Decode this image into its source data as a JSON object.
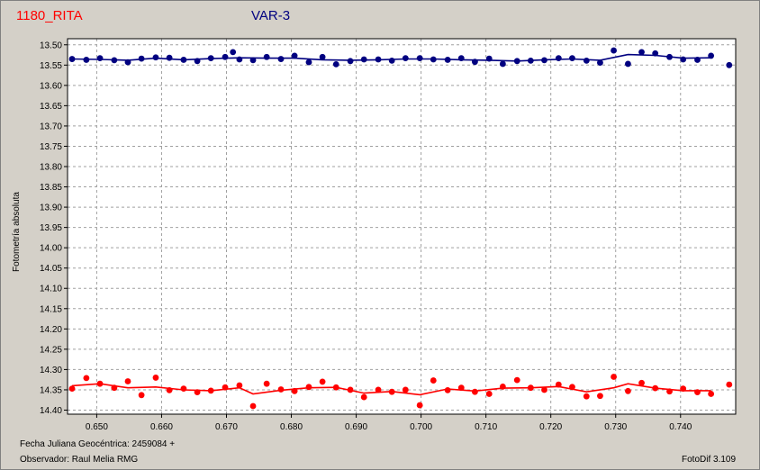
{
  "header": {
    "star_name": "1180_RITA",
    "panel_name": "VAR-3"
  },
  "footer": {
    "jd_label": "Fecha Juliana Geocéntrica: 2459084 +",
    "observer_label": "Observador: Raul Melia RMG",
    "software": "FotoDif 3.109"
  },
  "colors": {
    "background": "#d4d0c8",
    "plot_bg": "#ffffff",
    "grid": "#a0a0a0",
    "series_var": "#000080",
    "series_comp": "#ff0000",
    "star_name_color": "#ff0000",
    "panel_name_color": "#000080"
  },
  "chart_data": {
    "type": "scatter",
    "title": "VAR-3",
    "xlabel": "Fecha Juliana Geocéntrica: 2459084 +",
    "ylabel": "Fotometría absoluta",
    "xlim": [
      0.6455,
      0.7485
    ],
    "ylim": [
      14.41,
      13.485
    ],
    "y_inverted": true,
    "grid": true,
    "x_ticks": [
      "0.650",
      "0.660",
      "0.670",
      "0.680",
      "0.690",
      "0.700",
      "0.710",
      "0.720",
      "0.730",
      "0.740"
    ],
    "y_ticks": [
      "13.50",
      "13.55",
      "13.60",
      "13.65",
      "13.70",
      "13.75",
      "13.80",
      "13.85",
      "13.90",
      "13.95",
      "14.00",
      "14.05",
      "14.10",
      "14.15",
      "14.20",
      "14.25",
      "14.30",
      "14.35",
      "14.40"
    ],
    "series": [
      {
        "color": "#000080",
        "points": [
          [
            0.6462,
            13.535
          ],
          [
            0.6484,
            13.537
          ],
          [
            0.6505,
            13.533
          ],
          [
            0.6527,
            13.538
          ],
          [
            0.6548,
            13.543
          ],
          [
            0.6569,
            13.534
          ],
          [
            0.6591,
            13.531
          ],
          [
            0.6612,
            13.532
          ],
          [
            0.6634,
            13.537
          ],
          [
            0.6655,
            13.54
          ],
          [
            0.6676,
            13.533
          ],
          [
            0.6698,
            13.53
          ],
          [
            0.671,
            13.518
          ],
          [
            0.672,
            13.536
          ],
          [
            0.6741,
            13.538
          ],
          [
            0.6762,
            13.53
          ],
          [
            0.6784,
            13.535
          ],
          [
            0.6805,
            13.527
          ],
          [
            0.6827,
            13.543
          ],
          [
            0.6848,
            13.53
          ],
          [
            0.6869,
            13.548
          ],
          [
            0.6891,
            13.54
          ],
          [
            0.6912,
            13.536
          ],
          [
            0.6934,
            13.536
          ],
          [
            0.6955,
            13.539
          ],
          [
            0.6976,
            13.533
          ],
          [
            0.6998,
            13.533
          ],
          [
            0.7019,
            13.536
          ],
          [
            0.7041,
            13.537
          ],
          [
            0.7062,
            13.533
          ],
          [
            0.7083,
            13.542
          ],
          [
            0.7105,
            13.534
          ],
          [
            0.7126,
            13.547
          ],
          [
            0.7148,
            13.54
          ],
          [
            0.7169,
            13.539
          ],
          [
            0.719,
            13.538
          ],
          [
            0.7212,
            13.533
          ],
          [
            0.7233,
            13.533
          ],
          [
            0.7255,
            13.539
          ],
          [
            0.7276,
            13.544
          ],
          [
            0.7297,
            13.514
          ],
          [
            0.7319,
            13.547
          ],
          [
            0.734,
            13.518
          ],
          [
            0.7361,
            13.521
          ],
          [
            0.7383,
            13.53
          ],
          [
            0.7404,
            13.536
          ],
          [
            0.7426,
            13.537
          ],
          [
            0.7447,
            13.527
          ],
          [
            0.7475,
            13.55
          ]
        ],
        "trend": [
          [
            0.6462,
            13.535
          ],
          [
            0.6505,
            13.536
          ],
          [
            0.6548,
            13.538
          ],
          [
            0.6591,
            13.533
          ],
          [
            0.6634,
            13.537
          ],
          [
            0.6676,
            13.534
          ],
          [
            0.672,
            13.532
          ],
          [
            0.6762,
            13.533
          ],
          [
            0.6805,
            13.533
          ],
          [
            0.6848,
            13.537
          ],
          [
            0.6891,
            13.538
          ],
          [
            0.6934,
            13.537
          ],
          [
            0.6976,
            13.535
          ],
          [
            0.7019,
            13.535
          ],
          [
            0.7062,
            13.537
          ],
          [
            0.7105,
            13.538
          ],
          [
            0.7148,
            13.54
          ],
          [
            0.719,
            13.537
          ],
          [
            0.7233,
            13.535
          ],
          [
            0.7276,
            13.538
          ],
          [
            0.7319,
            13.524
          ],
          [
            0.7361,
            13.526
          ],
          [
            0.7404,
            13.533
          ],
          [
            0.7447,
            13.532
          ]
        ]
      },
      {
        "color": "#ff0000",
        "points": [
          [
            0.6462,
            14.347
          ],
          [
            0.6484,
            14.321
          ],
          [
            0.6505,
            14.335
          ],
          [
            0.6527,
            14.345
          ],
          [
            0.6548,
            14.329
          ],
          [
            0.6569,
            14.363
          ],
          [
            0.6591,
            14.32
          ],
          [
            0.6612,
            14.351
          ],
          [
            0.6634,
            14.347
          ],
          [
            0.6655,
            14.356
          ],
          [
            0.6676,
            14.352
          ],
          [
            0.6698,
            14.344
          ],
          [
            0.672,
            14.339
          ],
          [
            0.6741,
            14.39
          ],
          [
            0.6762,
            14.335
          ],
          [
            0.6784,
            14.349
          ],
          [
            0.6805,
            14.353
          ],
          [
            0.6827,
            14.343
          ],
          [
            0.6848,
            14.33
          ],
          [
            0.6869,
            14.344
          ],
          [
            0.6891,
            14.35
          ],
          [
            0.6912,
            14.368
          ],
          [
            0.6934,
            14.35
          ],
          [
            0.6955,
            14.355
          ],
          [
            0.6976,
            14.35
          ],
          [
            0.6998,
            14.388
          ],
          [
            0.7019,
            14.327
          ],
          [
            0.7041,
            14.351
          ],
          [
            0.7062,
            14.345
          ],
          [
            0.7083,
            14.355
          ],
          [
            0.7105,
            14.36
          ],
          [
            0.7126,
            14.342
          ],
          [
            0.7148,
            14.326
          ],
          [
            0.7169,
            14.345
          ],
          [
            0.719,
            14.35
          ],
          [
            0.7212,
            14.337
          ],
          [
            0.7233,
            14.343
          ],
          [
            0.7255,
            14.366
          ],
          [
            0.7276,
            14.365
          ],
          [
            0.7297,
            14.318
          ],
          [
            0.7319,
            14.353
          ],
          [
            0.734,
            14.333
          ],
          [
            0.7361,
            14.346
          ],
          [
            0.7383,
            14.354
          ],
          [
            0.7404,
            14.347
          ],
          [
            0.7426,
            14.356
          ],
          [
            0.7447,
            14.36
          ],
          [
            0.7475,
            14.337
          ]
        ],
        "trend": [
          [
            0.6462,
            14.34
          ],
          [
            0.6505,
            14.335
          ],
          [
            0.6548,
            14.345
          ],
          [
            0.6591,
            14.343
          ],
          [
            0.6634,
            14.35
          ],
          [
            0.6676,
            14.352
          ],
          [
            0.672,
            14.345
          ],
          [
            0.6741,
            14.36
          ],
          [
            0.6784,
            14.351
          ],
          [
            0.6827,
            14.345
          ],
          [
            0.6869,
            14.344
          ],
          [
            0.6912,
            14.358
          ],
          [
            0.6955,
            14.354
          ],
          [
            0.6998,
            14.362
          ],
          [
            0.7041,
            14.348
          ],
          [
            0.7083,
            14.353
          ],
          [
            0.7126,
            14.346
          ],
          [
            0.7169,
            14.345
          ],
          [
            0.7212,
            14.342
          ],
          [
            0.7255,
            14.355
          ],
          [
            0.7297,
            14.345
          ],
          [
            0.7319,
            14.335
          ],
          [
            0.7361,
            14.346
          ],
          [
            0.7404,
            14.352
          ],
          [
            0.7447,
            14.352
          ]
        ]
      }
    ]
  }
}
